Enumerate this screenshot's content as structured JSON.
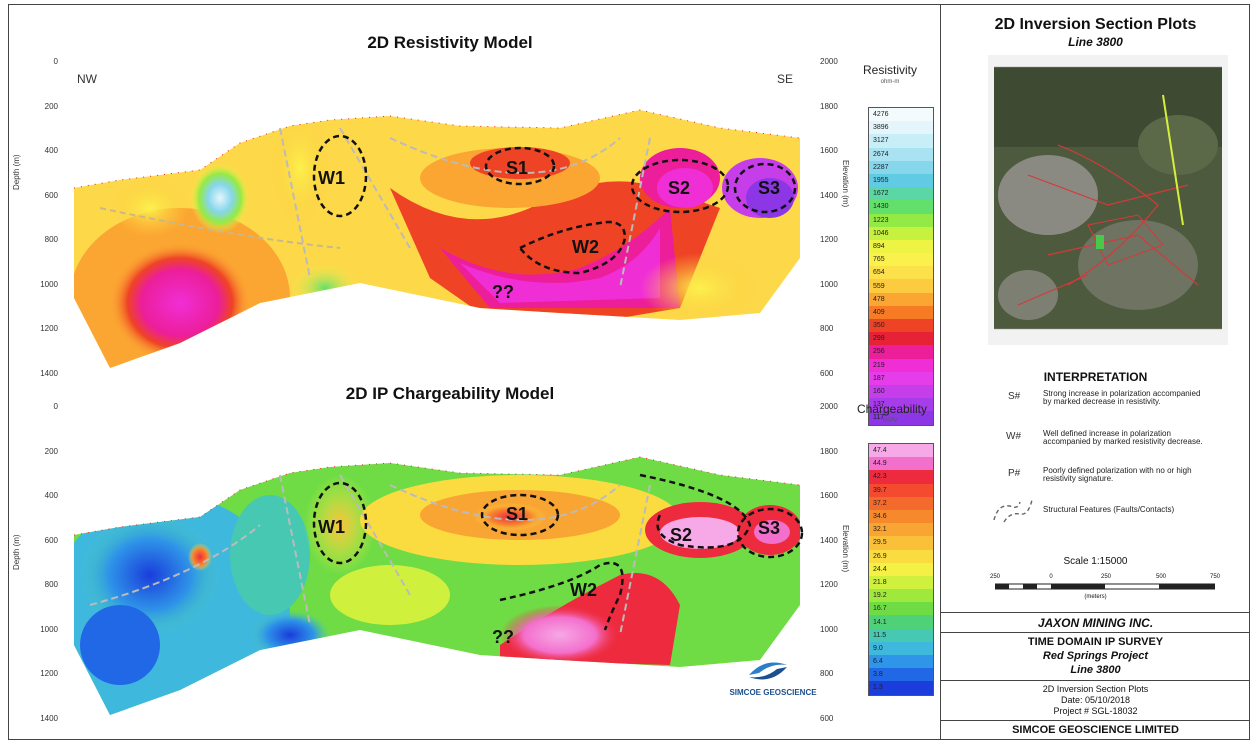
{
  "resistivity": {
    "title": "2D Resistivity Model",
    "dir_left": "NW",
    "dir_right": "SE",
    "ylabel_left": "Depth (m)",
    "ylabel_right": "Elevation (m)",
    "depth_ticks": [
      "0",
      "200",
      "400",
      "600",
      "800",
      "1000",
      "1200",
      "1400"
    ],
    "elev_ticks": [
      "2000",
      "1800",
      "1600",
      "1400",
      "1200",
      "1000",
      "800",
      "600"
    ],
    "legend_title": "Resistivity",
    "legend_unit": "ohm-m",
    "legend_values": [
      "4276",
      "3896",
      "3127",
      "2674",
      "2287",
      "1955",
      "1672",
      "1430",
      "1223",
      "1046",
      "894",
      "765",
      "654",
      "559",
      "478",
      "409",
      "350",
      "299",
      "256",
      "219",
      "187",
      "160",
      "137",
      "117"
    ],
    "legend_colors": [
      "#f3fbfd",
      "#e4f6fb",
      "#c8eef7",
      "#a9e3f2",
      "#86d6ec",
      "#60cbe2",
      "#5bd6a5",
      "#63e06b",
      "#94ea44",
      "#c6f23f",
      "#eef443",
      "#fbf14c",
      "#fde14b",
      "#fdcb3f",
      "#fba532",
      "#f77b25",
      "#ef4325",
      "#e82236",
      "#ec1e9a",
      "#f02ed6",
      "#e43de9",
      "#c63ee9",
      "#a73cea",
      "#8d36e6"
    ],
    "annotations": [
      "W1",
      "S1",
      "S2",
      "S3",
      "W2",
      "??"
    ]
  },
  "chargeability": {
    "title": "2D IP Chargeability Model",
    "ylabel_left": "Depth (m)",
    "ylabel_right": "Elevation (m)",
    "depth_ticks": [
      "0",
      "200",
      "400",
      "600",
      "800",
      "1000",
      "1200",
      "1400"
    ],
    "elev_ticks": [
      "2000",
      "1800",
      "1600",
      "1400",
      "1200",
      "1000",
      "800",
      "600"
    ],
    "legend_title": "Chargeability",
    "legend_unit": "mV/V",
    "legend_values": [
      "47.4",
      "44.9",
      "42.3",
      "39.7",
      "37.2",
      "34.6",
      "32.1",
      "29.5",
      "26.9",
      "24.4",
      "21.8",
      "19.2",
      "16.7",
      "14.1",
      "11.5",
      "9.0",
      "6.4",
      "3.8",
      "1.3"
    ],
    "legend_colors": [
      "#f7a8e6",
      "#f36fcc",
      "#ee2b3e",
      "#f34a30",
      "#f46a2c",
      "#f7892d",
      "#f9a533",
      "#fbc03a",
      "#fbdc40",
      "#f4f045",
      "#d0f03e",
      "#9fe83c",
      "#6fdc45",
      "#4fd178",
      "#47c8b2",
      "#3fb8de",
      "#2f95e8",
      "#2168e6",
      "#1a3ddc"
    ],
    "annotations": [
      "W1",
      "S1",
      "S2",
      "S3",
      "W2",
      "??"
    ]
  },
  "panel": {
    "title": "2D Inversion Section Plots",
    "subtitle": "Line 3800",
    "interp_title": "INTERPRETATION",
    "interp": [
      {
        "key": "S#",
        "text": "Strong increase in polarization accompanied by marked decrease in resistivity."
      },
      {
        "key": "W#",
        "text": "Well defined increase in polarization accompanied by marked resistivity decrease."
      },
      {
        "key": "P#",
        "text": "Poorly defined polarization with no or high resistivity signature."
      },
      {
        "key": "",
        "text": "Structural Features (Faults/Contacts)"
      }
    ],
    "scale_label": "Scale 1:15000",
    "scale_ticks": [
      "250",
      "0",
      "250",
      "500",
      "750"
    ],
    "scale_unit": "(meters)",
    "company": "JAXON MINING INC.",
    "survey": "TIME DOMAIN IP SURVEY",
    "project": "Red Springs Project",
    "line": "Line 3800",
    "doc_title": "2D Inversion Section Plots",
    "date": "Date: 05/10/2018",
    "project_no": "Project # SGL-18032",
    "footer": "SIMCOE GEOSCIENCE LIMITED",
    "logo_text": "SIMCOE GEOSCIENCE"
  }
}
